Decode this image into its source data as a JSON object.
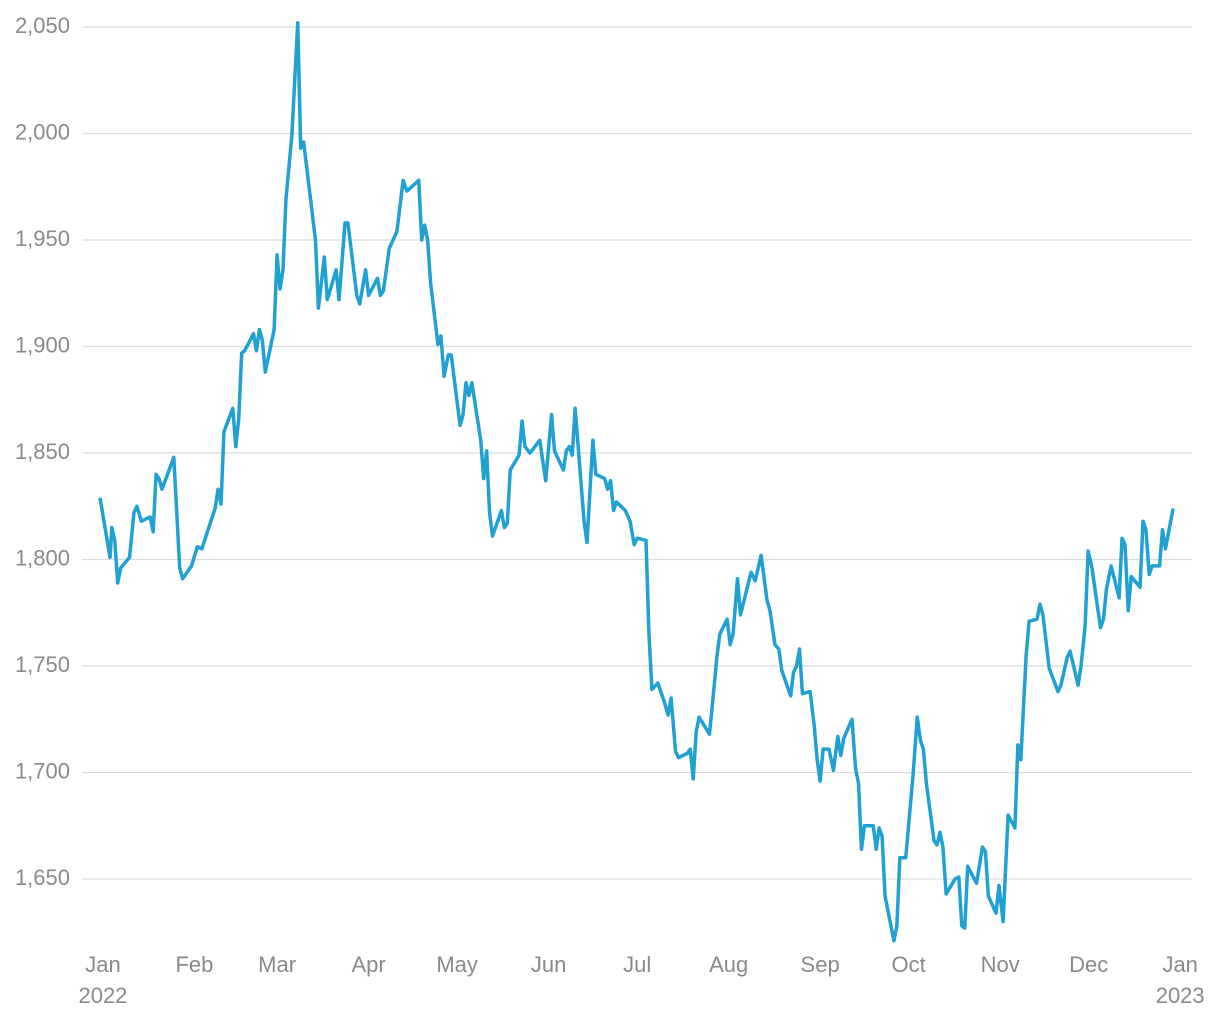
{
  "chart_data": {
    "type": "line",
    "x": [
      -1,
      2.4,
      3,
      4,
      5,
      6,
      9,
      10.5,
      11.5,
      13,
      16,
      17,
      18,
      19,
      20,
      24,
      26,
      27,
      30,
      32,
      33.5,
      38,
      39,
      40,
      41,
      44,
      45,
      46,
      47,
      48,
      51,
      52,
      53,
      54,
      55,
      58,
      59,
      60,
      61,
      62,
      64,
      66,
      67,
      68,
      72,
      73,
      75,
      76,
      79,
      80,
      82,
      83,
      86,
      87,
      89,
      90,
      93,
      94,
      95,
      97,
      99.6,
      101.7,
      103,
      107,
      108,
      109,
      110,
      111,
      113.5,
      114.5,
      115.6,
      117,
      118,
      121,
      122,
      123,
      124,
      125,
      128,
      129,
      130,
      131,
      132,
      135,
      136,
      137,
      138,
      141,
      142,
      143,
      144.7,
      148,
      150,
      152,
      153,
      156,
      157,
      158,
      159,
      160,
      163,
      164,
      166,
      167,
      170,
      171,
      172,
      173,
      174,
      177,
      178.6,
      180,
      181,
      184,
      185,
      186,
      188,
      190,
      191.5,
      192.5,
      194,
      195,
      198,
      199,
      200,
      201,
      202,
      205.5,
      206.5,
      208,
      209,
      211.5,
      212.5,
      213.5,
      215,
      216,
      219.6,
      221,
      223,
      225,
      226,
      227.7,
      229,
      230,
      233,
      234,
      235,
      236,
      237,
      239.6,
      241,
      242,
      243,
      244,
      246,
      247.5,
      249,
      250,
      251,
      253.8,
      255,
      256,
      257,
      258,
      261,
      262,
      263,
      264,
      265,
      268,
      269,
      270,
      272,
      274.5,
      275.9,
      277,
      278,
      279,
      281.6,
      282.6,
      283.6,
      284.6,
      285.7,
      288.7,
      290,
      291,
      292,
      293,
      296,
      298,
      299,
      300,
      302.6,
      303.6,
      305,
      306.7,
      309,
      310,
      311,
      312.8,
      313.8,
      316.5,
      317.5,
      318.5,
      320.6,
      323.6,
      324.6,
      326.7,
      327.7,
      330.4,
      331.4,
      332.8,
      333.8,
      335,
      338,
      339,
      340,
      341.6,
      344.3,
      345.3,
      346.3,
      347.4,
      348.4,
      351.4,
      352.4,
      353.4,
      354.5,
      355.5,
      358,
      359,
      360,
      362.6
    ],
    "values": [
      1829,
      1801,
      1815,
      1809,
      1789,
      1796,
      1801,
      1822,
      1825,
      1818,
      1820,
      1813,
      1840,
      1838,
      1833,
      1848,
      1796,
      1791,
      1797,
      1806,
      1805,
      1824,
      1833,
      1826,
      1860,
      1871,
      1853,
      1866,
      1897,
      1898,
      1906,
      1898,
      1908,
      1903,
      1888,
      1908,
      1943,
      1927,
      1936,
      1969,
      1999,
      2052,
      1993,
      1996,
      1950,
      1918,
      1942,
      1922,
      1936,
      1922,
      1958,
      1958,
      1924,
      1920,
      1936,
      1924,
      1932,
      1924,
      1926,
      1946,
      1954,
      1978,
      1973,
      1978,
      1950,
      1957,
      1950,
      1930,
      1901,
      1905,
      1886,
      1896,
      1896,
      1863,
      1868,
      1883,
      1877,
      1883,
      1856,
      1838,
      1851,
      1822,
      1811,
      1823,
      1815,
      1817,
      1842,
      1849,
      1865,
      1853,
      1850,
      1856,
      1837,
      1868,
      1851,
      1842,
      1851,
      1853,
      1849,
      1871,
      1818,
      1808,
      1856,
      1840,
      1838,
      1833,
      1837,
      1823,
      1827,
      1823,
      1818,
      1807,
      1810,
      1809,
      1765,
      1739,
      1742,
      1734,
      1727,
      1735,
      1710,
      1707,
      1709,
      1711,
      1697,
      1719,
      1726,
      1718,
      1732,
      1754,
      1765,
      1772,
      1760,
      1765,
      1791,
      1774,
      1794,
      1790,
      1802,
      1781,
      1776,
      1760,
      1758,
      1748,
      1736,
      1747,
      1750,
      1758,
      1737,
      1738,
      1722,
      1706,
      1696,
      1711,
      1711,
      1701,
      1717,
      1708,
      1716,
      1725,
      1702,
      1695,
      1664,
      1675,
      1675,
      1664,
      1674,
      1670,
      1642,
      1621,
      1628,
      1660,
      1660,
      1699,
      1726,
      1715,
      1711,
      1695,
      1668,
      1666,
      1672,
      1665,
      1643,
      1650,
      1651,
      1628,
      1627,
      1656,
      1648,
      1665,
      1663,
      1642,
      1634,
      1647,
      1630,
      1680,
      1674,
      1713,
      1706,
      1755,
      1771,
      1772,
      1779,
      1774,
      1749,
      1738,
      1741,
      1754,
      1757,
      1741,
      1750,
      1769,
      1804,
      1797,
      1768,
      1772,
      1786,
      1797,
      1782,
      1810,
      1807,
      1776,
      1792,
      1787,
      1818,
      1814,
      1793,
      1797,
      1797,
      1814,
      1805,
      1824
    ],
    "color": "#21a0d2",
    "xlim": [
      -7,
      369
    ],
    "xticks": [
      {
        "value": 0,
        "label": "Jan"
      },
      {
        "value": 31,
        "label": "Feb"
      },
      {
        "value": 59,
        "label": "Mar"
      },
      {
        "value": 90,
        "label": "Apr"
      },
      {
        "value": 120,
        "label": "May"
      },
      {
        "value": 151,
        "label": "Jun"
      },
      {
        "value": 181,
        "label": "Jul"
      },
      {
        "value": 212,
        "label": "Aug"
      },
      {
        "value": 243,
        "label": "Sep"
      },
      {
        "value": 273,
        "label": "Oct"
      },
      {
        "value": 304,
        "label": "Nov"
      },
      {
        "value": 334,
        "label": "Dec"
      },
      {
        "value": 365,
        "label": "Jan"
      }
    ],
    "year_labels": [
      {
        "value": 0,
        "label": "2022"
      },
      {
        "value": 365,
        "label": "2023"
      }
    ],
    "ylim": [
      1615,
      2055
    ],
    "yticks": [
      {
        "value": 1650,
        "label": "1,650"
      },
      {
        "value": 1700,
        "label": "1,700"
      },
      {
        "value": 1750,
        "label": "1,750"
      },
      {
        "value": 1800,
        "label": "1,800"
      },
      {
        "value": 1850,
        "label": "1,850"
      },
      {
        "value": 1900,
        "label": "1,900"
      },
      {
        "value": 1950,
        "label": "1,950"
      },
      {
        "value": 2000,
        "label": "2,000"
      },
      {
        "value": 2050,
        "label": "2,050"
      }
    ],
    "grid": true
  }
}
